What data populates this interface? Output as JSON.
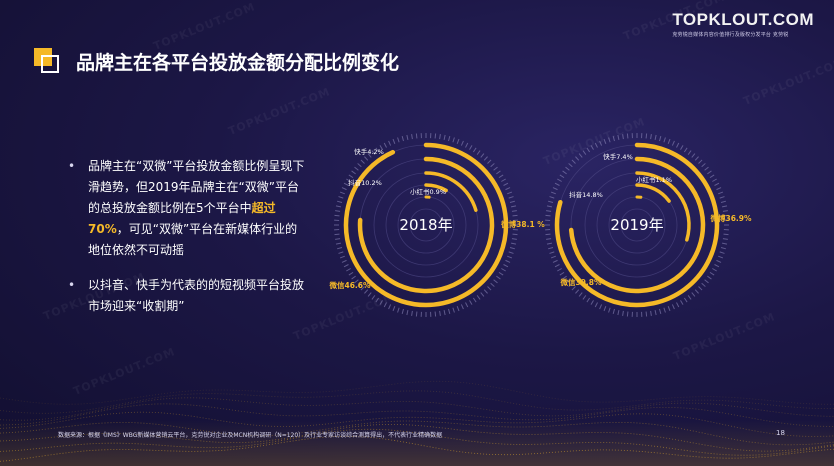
{
  "logo": {
    "name": "TOPKLOUT.COM",
    "tagline": "克劳锐自媒体内容价值排行及版权分发平台  克劳锐"
  },
  "watermark_text": "TOPKLOUT.COM",
  "title": "品牌主在各平台投放金额分配比例变化",
  "bullets": [
    {
      "before": "品牌主在“双微”平台投放金额比例呈现下滑趋势，但2019年品牌主在“双微”平台的总投放金额比例在5个平台中",
      "highlight": "超过70%",
      "after": "，可见“双微”平台在新媒体行业的地位依然不可动摇"
    },
    {
      "before": "以抖音、快手为代表的的短视频平台投放市场迎来“收割期”",
      "highlight": "",
      "after": ""
    }
  ],
  "chart_data": [
    {
      "type": "radial-bar",
      "center_label": "2018年",
      "categories": [
        "微信",
        "微博",
        "抖音",
        "快手",
        "小红书"
      ],
      "values": [
        46.6,
        38.1,
        10.2,
        4.2,
        0.9
      ],
      "labels": [
        "微信46.6%",
        "微博38.1 %",
        "抖音10.2%",
        "快手4.2%",
        "小红书0.9%"
      ],
      "unit": "%"
    },
    {
      "type": "radial-bar",
      "center_label": "2019年",
      "categories": [
        "微信",
        "微博",
        "抖音",
        "快手",
        "小红书"
      ],
      "values": [
        39.8,
        36.9,
        14.8,
        7.4,
        1.1
      ],
      "labels": [
        "微信39.8%",
        "微博36.9%",
        "抖音14.8%",
        "快手7.4%",
        "小红书1.1%"
      ],
      "unit": "%"
    }
  ],
  "colors": {
    "accent": "#f5b928",
    "text": "#ffffff",
    "background": "#1c1746"
  },
  "footer": {
    "source": "数据来源：根据《IMS》WBG新媒体营销云平台，克劳锐对企业及MCN机构调研（N=120）及行业专家访谈综合测算得出，不代表行业精确数据",
    "page": "18"
  }
}
